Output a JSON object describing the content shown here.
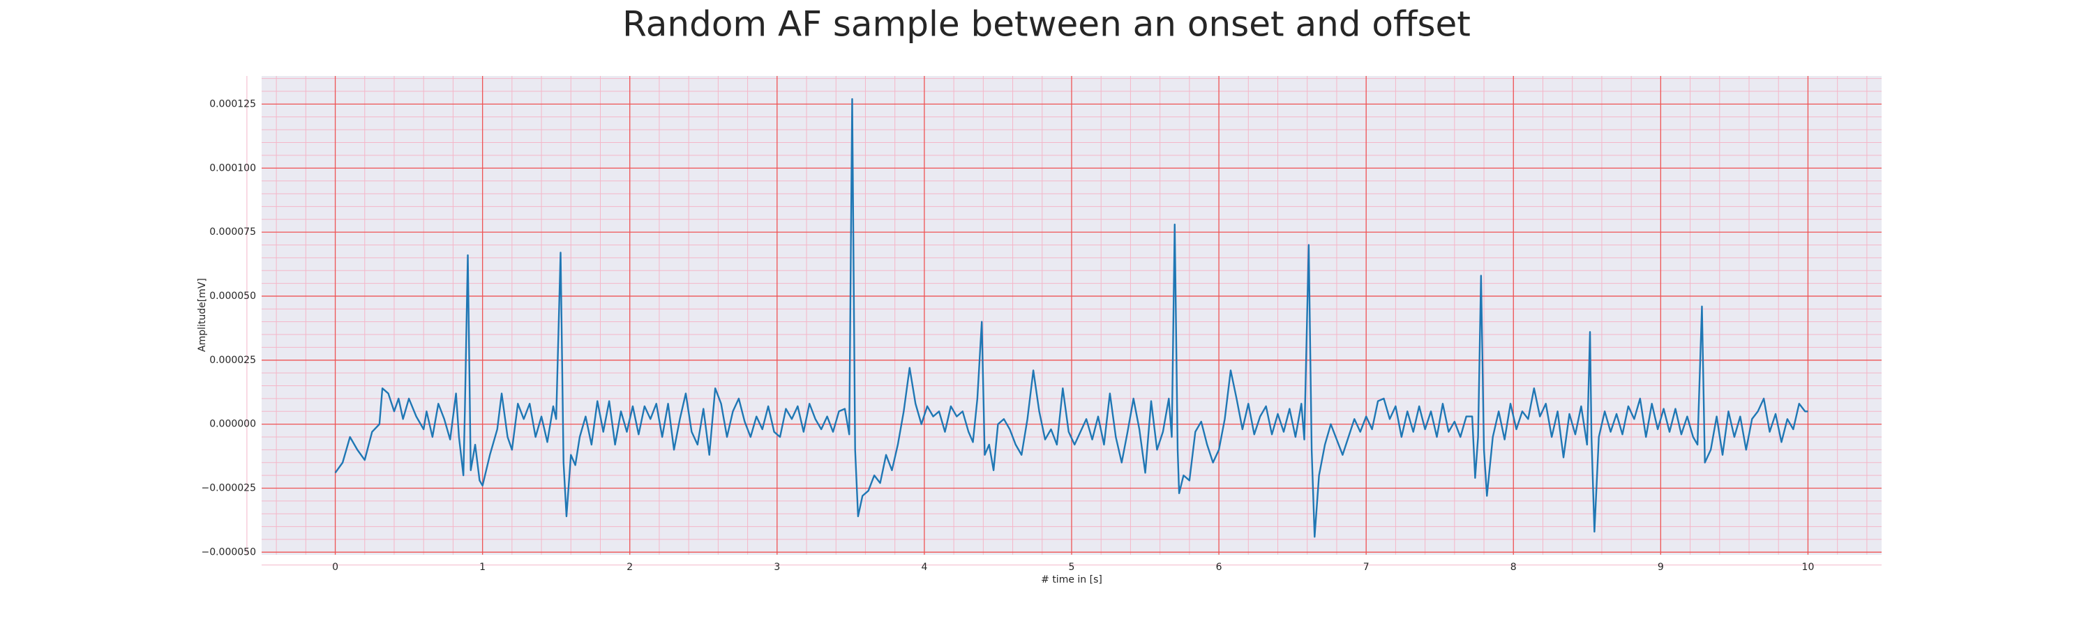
{
  "chart_data": {
    "type": "line",
    "title": "Random AF sample between an onset and offset",
    "xlabel": "# time in [s]",
    "ylabel": "Amplitude[mV]",
    "color": "#1f77b4",
    "grid": true,
    "minor_grid": true,
    "xlim": [
      -0.5,
      10.5
    ],
    "xticks": [
      0,
      1,
      2,
      3,
      4,
      5,
      6,
      7,
      8,
      9,
      10
    ],
    "ylim": [
      -5.1e-05,
      0.000136
    ],
    "yticks": [
      {
        "value": -5e-05,
        "label": "−0.000050"
      },
      {
        "value": -2.5e-05,
        "label": "−0.000025"
      },
      {
        "value": 0,
        "label": "0.000000"
      },
      {
        "value": 2.5e-05,
        "label": "0.000025"
      },
      {
        "value": 5e-05,
        "label": "0.000050"
      },
      {
        "value": 7.5e-05,
        "label": "0.000075"
      },
      {
        "value": 0.0001,
        "label": "0.000100"
      },
      {
        "value": 0.000125,
        "label": "0.000125"
      }
    ],
    "x": [
      0,
      0.05,
      0.1,
      0.15,
      0.2,
      0.25,
      0.3,
      0.32,
      0.36,
      0.4,
      0.43,
      0.46,
      0.5,
      0.55,
      0.6,
      0.62,
      0.66,
      0.7,
      0.74,
      0.78,
      0.82,
      0.84,
      0.87,
      0.88,
      0.9,
      0.92,
      0.95,
      0.98,
      1.0,
      1.05,
      1.1,
      1.13,
      1.17,
      1.2,
      1.24,
      1.28,
      1.32,
      1.36,
      1.4,
      1.44,
      1.48,
      1.5,
      1.53,
      1.55,
      1.57,
      1.6,
      1.63,
      1.66,
      1.7,
      1.74,
      1.78,
      1.82,
      1.86,
      1.9,
      1.94,
      1.98,
      2.02,
      2.06,
      2.1,
      2.14,
      2.18,
      2.22,
      2.26,
      2.3,
      2.34,
      2.38,
      2.42,
      2.46,
      2.5,
      2.54,
      2.58,
      2.62,
      2.66,
      2.7,
      2.74,
      2.78,
      2.82,
      2.86,
      2.9,
      2.94,
      2.98,
      3.02,
      3.06,
      3.1,
      3.14,
      3.18,
      3.22,
      3.26,
      3.3,
      3.34,
      3.38,
      3.42,
      3.46,
      3.49,
      3.51,
      3.53,
      3.55,
      3.58,
      3.62,
      3.66,
      3.7,
      3.74,
      3.78,
      3.82,
      3.86,
      3.9,
      3.94,
      3.98,
      4.02,
      4.06,
      4.1,
      4.14,
      4.18,
      4.22,
      4.26,
      4.3,
      4.33,
      4.36,
      4.39,
      4.41,
      4.44,
      4.47,
      4.5,
      4.54,
      4.58,
      4.62,
      4.66,
      4.7,
      4.74,
      4.78,
      4.82,
      4.86,
      4.9,
      4.94,
      4.98,
      5.02,
      5.06,
      5.1,
      5.14,
      5.18,
      5.22,
      5.26,
      5.3,
      5.34,
      5.38,
      5.42,
      5.46,
      5.5,
      5.54,
      5.58,
      5.62,
      5.66,
      5.68,
      5.7,
      5.72,
      5.73,
      5.76,
      5.8,
      5.84,
      5.88,
      5.92,
      5.96,
      6.0,
      6.04,
      6.08,
      6.12,
      6.16,
      6.2,
      6.24,
      6.28,
      6.32,
      6.36,
      6.4,
      6.44,
      6.48,
      6.52,
      6.56,
      6.58,
      6.61,
      6.63,
      6.65,
      6.68,
      6.72,
      6.76,
      6.8,
      6.84,
      6.88,
      6.92,
      6.96,
      7.0,
      7.04,
      7.08,
      7.12,
      7.16,
      7.2,
      7.24,
      7.28,
      7.32,
      7.36,
      7.4,
      7.44,
      7.48,
      7.52,
      7.56,
      7.6,
      7.64,
      7.68,
      7.72,
      7.74,
      7.76,
      7.78,
      7.8,
      7.82,
      7.86,
      7.9,
      7.94,
      7.98,
      8.02,
      8.06,
      8.1,
      8.14,
      8.18,
      8.22,
      8.26,
      8.3,
      8.34,
      8.38,
      8.42,
      8.46,
      8.5,
      8.52,
      8.53,
      8.55,
      8.58,
      8.62,
      8.66,
      8.7,
      8.74,
      8.78,
      8.82,
      8.86,
      8.9,
      8.94,
      8.98,
      9.02,
      9.06,
      9.1,
      9.14,
      9.18,
      9.22,
      9.25,
      9.28,
      9.3,
      9.34,
      9.38,
      9.42,
      9.46,
      9.5,
      9.54,
      9.58,
      9.62,
      9.66,
      9.7,
      9.74,
      9.78,
      9.82,
      9.86,
      9.9,
      9.94,
      9.98,
      10.0
    ],
    "values": [
      -1.9e-05,
      -1.5e-05,
      -5e-06,
      -1e-05,
      -1.4e-05,
      -3e-06,
      0,
      1.4e-05,
      1.2e-05,
      5e-06,
      1e-05,
      2e-06,
      1e-05,
      3e-06,
      -2e-06,
      5e-06,
      -5e-06,
      8e-06,
      2e-06,
      -6e-06,
      1.2e-05,
      -5e-06,
      -2e-05,
      5e-06,
      6.6e-05,
      -1.8e-05,
      -8e-06,
      -2.2e-05,
      -2.4e-05,
      -1.2e-05,
      -2e-06,
      1.2e-05,
      -5e-06,
      -1e-05,
      8e-06,
      2e-06,
      8e-06,
      -5e-06,
      3e-06,
      -7e-06,
      7e-06,
      2e-06,
      6.7e-05,
      -1.5e-05,
      -3.6e-05,
      -1.2e-05,
      -1.6e-05,
      -5e-06,
      3e-06,
      -8e-06,
      9e-06,
      -3e-06,
      9e-06,
      -8e-06,
      5e-06,
      -3e-06,
      7e-06,
      -4e-06,
      7e-06,
      2e-06,
      8e-06,
      -5e-06,
      8e-06,
      -1e-05,
      2e-06,
      1.2e-05,
      -3e-06,
      -8e-06,
      6e-06,
      -1.2e-05,
      1.4e-05,
      8e-06,
      -5e-06,
      5e-06,
      1e-05,
      1e-06,
      -5e-06,
      3e-06,
      -2e-06,
      7e-06,
      -3e-06,
      -5e-06,
      6e-06,
      2e-06,
      7e-06,
      -3e-06,
      8e-06,
      2e-06,
      -2e-06,
      3e-06,
      -3e-06,
      5e-06,
      6e-06,
      -4e-06,
      0.000127,
      -1e-05,
      -3.6e-05,
      -2.8e-05,
      -2.6e-05,
      -2e-05,
      -2.3e-05,
      -1.2e-05,
      -1.8e-05,
      -8e-06,
      5e-06,
      2.2e-05,
      8e-06,
      0,
      7e-06,
      3e-06,
      5e-06,
      -3e-06,
      7e-06,
      3e-06,
      5e-06,
      -3e-06,
      -7e-06,
      1e-05,
      4e-05,
      -1.2e-05,
      -8e-06,
      -1.8e-05,
      0,
      2e-06,
      -2e-06,
      -8e-06,
      -1.2e-05,
      2e-06,
      2.1e-05,
      5e-06,
      -6e-06,
      -2e-06,
      -8e-06,
      1.4e-05,
      -3e-06,
      -8e-06,
      -3e-06,
      2e-06,
      -6e-06,
      3e-06,
      -8e-06,
      1.2e-05,
      -5e-06,
      -1.5e-05,
      -3e-06,
      1e-05,
      -2e-06,
      -1.9e-05,
      9e-06,
      -1e-05,
      -3e-06,
      1e-05,
      -5e-06,
      7.8e-05,
      -1e-05,
      -2.7e-05,
      -2e-05,
      -2.2e-05,
      -3e-06,
      1e-06,
      -8e-06,
      -1.5e-05,
      -1e-05,
      2e-06,
      2.1e-05,
      1e-05,
      -2e-06,
      8e-06,
      -4e-06,
      3e-06,
      7e-06,
      -4e-06,
      4e-06,
      -3e-06,
      6e-06,
      -5e-06,
      8e-06,
      -6e-06,
      7e-05,
      -1e-05,
      -4.4e-05,
      -2e-05,
      -8e-06,
      0,
      -6e-06,
      -1.2e-05,
      -5e-06,
      2e-06,
      -3e-06,
      3e-06,
      -2e-06,
      9e-06,
      1e-05,
      2e-06,
      7e-06,
      -5e-06,
      5e-06,
      -3e-06,
      7e-06,
      -2e-06,
      5e-06,
      -5e-06,
      8e-06,
      -3e-06,
      1e-06,
      -5e-06,
      3e-06,
      3e-06,
      -2.1e-05,
      -5e-06,
      5.8e-05,
      -1e-05,
      -2.8e-05,
      -5e-06,
      5e-06,
      -6e-06,
      8e-06,
      -2e-06,
      5e-06,
      2e-06,
      1.4e-05,
      3e-06,
      8e-06,
      -5e-06,
      5e-06,
      -1.3e-05,
      4e-06,
      -4e-06,
      7e-06,
      -8e-06,
      3.6e-05,
      -5e-06,
      -4.2e-05,
      -5e-06,
      5e-06,
      -3e-06,
      4e-06,
      -4e-06,
      7e-06,
      2e-06,
      1e-05,
      -5e-06,
      8e-06,
      -2e-06,
      6e-06,
      -3e-06,
      6e-06,
      -4e-06,
      3e-06,
      -5e-06,
      -8e-06,
      4.6e-05,
      -1.5e-05,
      -1e-05,
      3e-06,
      -1.2e-05,
      5e-06,
      -5e-06,
      3e-06,
      -1e-05,
      2e-06,
      5e-06,
      1e-05,
      -3e-06,
      4e-06,
      -7e-06,
      2e-06,
      -2e-06,
      8e-06,
      5e-06,
      5e-06
    ]
  }
}
